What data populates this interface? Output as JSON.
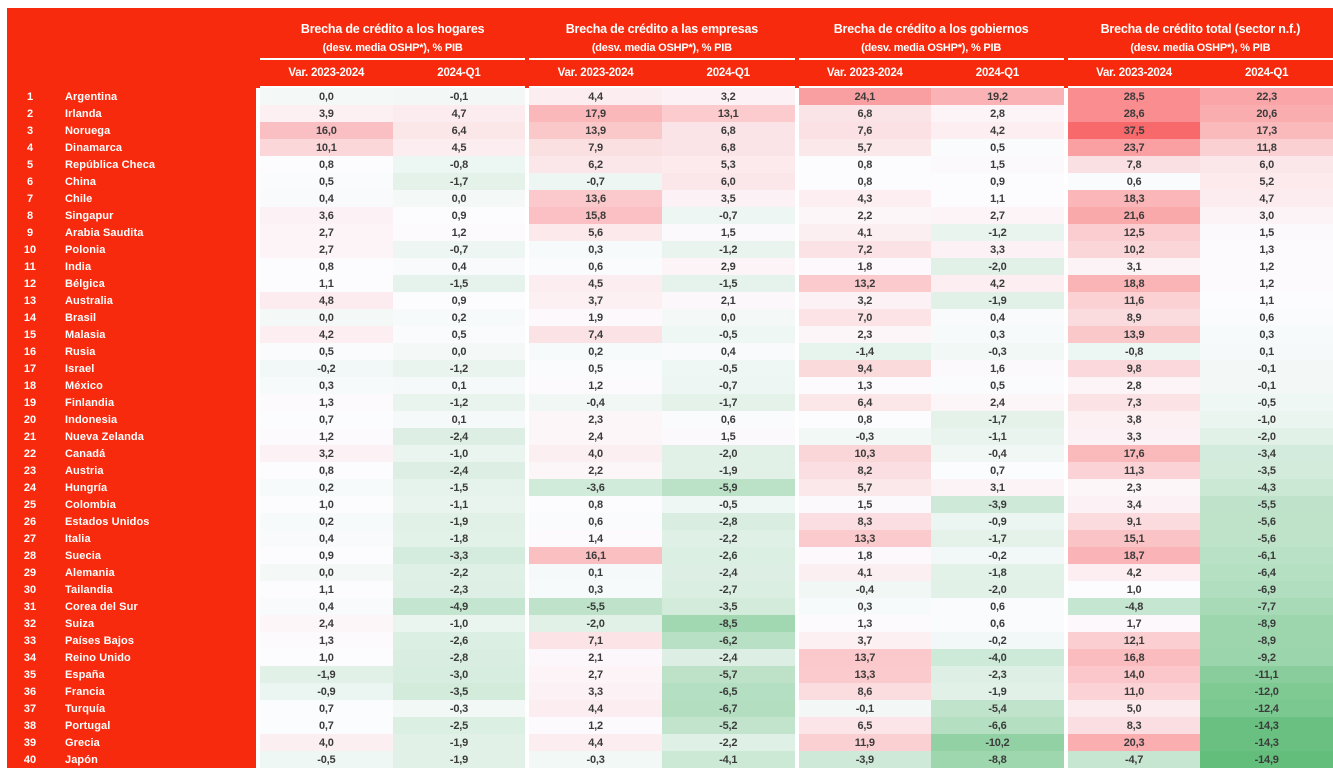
{
  "chart_data": {
    "type": "heatmap",
    "column_groups": [
      {
        "title": "Brecha de crédito a los hogares",
        "subtitle": "(desv. media OSHP*), % PIB"
      },
      {
        "title": "Brecha de crédito a las empresas",
        "subtitle": "(desv. media OSHP*), % PIB"
      },
      {
        "title": "Brecha de crédito a los gobiernos",
        "subtitle": "(desv. media OSHP*), % PIB"
      },
      {
        "title": "Brecha de crédito total (sector n.f.)",
        "subtitle": "(desv. media OSHP*), % PIB"
      }
    ],
    "column_headers": [
      "Var. 2023-2024",
      "2024-Q1"
    ],
    "number_format": "decimal-comma, 1 decimal place",
    "color_scale": {
      "min": -14.9,
      "mid": 0.8,
      "max": 37.5,
      "min_color": "#63BE7B",
      "mid_color": "#FCFCFF",
      "max_color": "#F8696B"
    },
    "rows": [
      {
        "rank": 1,
        "country": "Argentina",
        "values": [
          0.0,
          -0.1,
          4.4,
          3.2,
          24.1,
          19.2,
          28.5,
          22.3
        ]
      },
      {
        "rank": 2,
        "country": "Irlanda",
        "values": [
          3.9,
          4.7,
          17.9,
          13.1,
          6.8,
          2.8,
          28.6,
          20.6
        ]
      },
      {
        "rank": 3,
        "country": "Noruega",
        "values": [
          16.0,
          6.4,
          13.9,
          6.8,
          7.6,
          4.2,
          37.5,
          17.3
        ]
      },
      {
        "rank": 4,
        "country": "Dinamarca",
        "values": [
          10.1,
          4.5,
          7.9,
          6.8,
          5.7,
          0.5,
          23.7,
          11.8
        ]
      },
      {
        "rank": 5,
        "country": "República Checa",
        "values": [
          0.8,
          -0.8,
          6.2,
          5.3,
          0.8,
          1.5,
          7.8,
          6.0
        ]
      },
      {
        "rank": 6,
        "country": "China",
        "values": [
          0.5,
          -1.7,
          -0.7,
          6.0,
          0.8,
          0.9,
          0.6,
          5.2
        ]
      },
      {
        "rank": 7,
        "country": "Chile",
        "values": [
          0.4,
          0.0,
          13.6,
          3.5,
          4.3,
          1.1,
          18.3,
          4.7
        ]
      },
      {
        "rank": 8,
        "country": "Singapur",
        "values": [
          3.6,
          0.9,
          15.8,
          -0.7,
          2.2,
          2.7,
          21.6,
          3.0
        ]
      },
      {
        "rank": 9,
        "country": "Arabia Saudita",
        "values": [
          2.7,
          1.2,
          5.6,
          1.5,
          4.1,
          -1.2,
          12.5,
          1.5
        ]
      },
      {
        "rank": 10,
        "country": "Polonia",
        "values": [
          2.7,
          -0.7,
          0.3,
          -1.2,
          7.2,
          3.3,
          10.2,
          1.3
        ]
      },
      {
        "rank": 11,
        "country": "India",
        "values": [
          0.8,
          0.4,
          0.6,
          2.9,
          1.8,
          -2.0,
          3.1,
          1.2
        ]
      },
      {
        "rank": 12,
        "country": "Bélgica",
        "values": [
          1.1,
          -1.5,
          4.5,
          -1.5,
          13.2,
          4.2,
          18.8,
          1.2
        ]
      },
      {
        "rank": 13,
        "country": "Australia",
        "values": [
          4.8,
          0.9,
          3.7,
          2.1,
          3.2,
          -1.9,
          11.6,
          1.1
        ]
      },
      {
        "rank": 14,
        "country": "Brasil",
        "values": [
          0.0,
          0.2,
          1.9,
          0.0,
          7.0,
          0.4,
          8.9,
          0.6
        ]
      },
      {
        "rank": 15,
        "country": "Malasia",
        "values": [
          4.2,
          0.5,
          7.4,
          -0.5,
          2.3,
          0.3,
          13.9,
          0.3
        ]
      },
      {
        "rank": 16,
        "country": "Rusia",
        "values": [
          0.5,
          0.0,
          0.2,
          0.4,
          -1.4,
          -0.3,
          -0.8,
          0.1
        ]
      },
      {
        "rank": 17,
        "country": "Israel",
        "values": [
          -0.2,
          -1.2,
          0.5,
          -0.5,
          9.4,
          1.6,
          9.8,
          -0.1
        ]
      },
      {
        "rank": 18,
        "country": "México",
        "values": [
          0.3,
          0.1,
          1.2,
          -0.7,
          1.3,
          0.5,
          2.8,
          -0.1
        ]
      },
      {
        "rank": 19,
        "country": "Finlandia",
        "values": [
          1.3,
          -1.2,
          -0.4,
          -1.7,
          6.4,
          2.4,
          7.3,
          -0.5
        ]
      },
      {
        "rank": 20,
        "country": "Indonesia",
        "values": [
          0.7,
          0.1,
          2.3,
          0.6,
          0.8,
          -1.7,
          3.8,
          -1.0
        ]
      },
      {
        "rank": 21,
        "country": "Nueva Zelanda",
        "values": [
          1.2,
          -2.4,
          2.4,
          1.5,
          -0.3,
          -1.1,
          3.3,
          -2.0
        ]
      },
      {
        "rank": 22,
        "country": "Canadá",
        "values": [
          3.2,
          -1.0,
          4.0,
          -2.0,
          10.3,
          -0.4,
          17.6,
          -3.4
        ]
      },
      {
        "rank": 23,
        "country": "Austria",
        "values": [
          0.8,
          -2.4,
          2.2,
          -1.9,
          8.2,
          0.7,
          11.3,
          -3.5
        ]
      },
      {
        "rank": 24,
        "country": "Hungría",
        "values": [
          0.2,
          -1.5,
          -3.6,
          -5.9,
          5.7,
          3.1,
          2.3,
          -4.3
        ]
      },
      {
        "rank": 25,
        "country": "Colombia",
        "values": [
          1.0,
          -1.1,
          0.8,
          -0.5,
          1.5,
          -3.9,
          3.4,
          -5.5
        ]
      },
      {
        "rank": 26,
        "country": "Estados Unidos",
        "values": [
          0.2,
          -1.9,
          0.6,
          -2.8,
          8.3,
          -0.9,
          9.1,
          -5.6
        ]
      },
      {
        "rank": 27,
        "country": "Italia",
        "values": [
          0.4,
          -1.8,
          1.4,
          -2.2,
          13.3,
          -1.7,
          15.1,
          -5.6
        ]
      },
      {
        "rank": 28,
        "country": "Suecia",
        "values": [
          0.9,
          -3.3,
          16.1,
          -2.6,
          1.8,
          -0.2,
          18.7,
          -6.1
        ]
      },
      {
        "rank": 29,
        "country": "Alemania",
        "values": [
          0.0,
          -2.2,
          0.1,
          -2.4,
          4.1,
          -1.8,
          4.2,
          -6.4
        ]
      },
      {
        "rank": 30,
        "country": "Tailandia",
        "values": [
          1.1,
          -2.3,
          0.3,
          -2.7,
          -0.4,
          -2.0,
          1.0,
          -6.9
        ]
      },
      {
        "rank": 31,
        "country": "Corea del Sur",
        "values": [
          0.4,
          -4.9,
          -5.5,
          -3.5,
          0.3,
          0.6,
          -4.8,
          -7.7
        ]
      },
      {
        "rank": 32,
        "country": "Suiza",
        "values": [
          2.4,
          -1.0,
          -2.0,
          -8.5,
          1.3,
          0.6,
          1.7,
          -8.9
        ]
      },
      {
        "rank": 33,
        "country": "Países Bajos",
        "values": [
          1.3,
          -2.6,
          7.1,
          -6.2,
          3.7,
          -0.2,
          12.1,
          -8.9
        ]
      },
      {
        "rank": 34,
        "country": "Reino Unido",
        "values": [
          1.0,
          -2.8,
          2.1,
          -2.4,
          13.7,
          -4.0,
          16.8,
          -9.2
        ]
      },
      {
        "rank": 35,
        "country": "España",
        "values": [
          -1.9,
          -3.0,
          2.7,
          -5.7,
          13.3,
          -2.3,
          14.0,
          -11.1
        ]
      },
      {
        "rank": 36,
        "country": "Francia",
        "values": [
          -0.9,
          -3.5,
          3.3,
          -6.5,
          8.6,
          -1.9,
          11.0,
          -12.0
        ]
      },
      {
        "rank": 37,
        "country": "Turquía",
        "values": [
          0.7,
          -0.3,
          4.4,
          -6.7,
          -0.1,
          -5.4,
          5.0,
          -12.4
        ]
      },
      {
        "rank": 38,
        "country": "Portugal",
        "values": [
          0.7,
          -2.5,
          1.2,
          -5.2,
          6.5,
          -6.6,
          8.3,
          -14.3
        ]
      },
      {
        "rank": 39,
        "country": "Grecia",
        "values": [
          4.0,
          -1.9,
          4.4,
          -2.2,
          11.9,
          -10.2,
          20.3,
          -14.3
        ]
      },
      {
        "rank": 40,
        "country": "Japón",
        "values": [
          -0.5,
          -1.9,
          -0.3,
          -4.1,
          -3.9,
          -8.8,
          -4.7,
          -14.9
        ]
      }
    ]
  },
  "colors": {
    "background_red": "#F72A0D",
    "header_text": "#FFFFFF",
    "cell_text": "#3B3B3B",
    "heat_max_red": "#F8696B",
    "heat_mid_white": "#FCFCFF",
    "heat_min_green": "#63BE7B"
  }
}
